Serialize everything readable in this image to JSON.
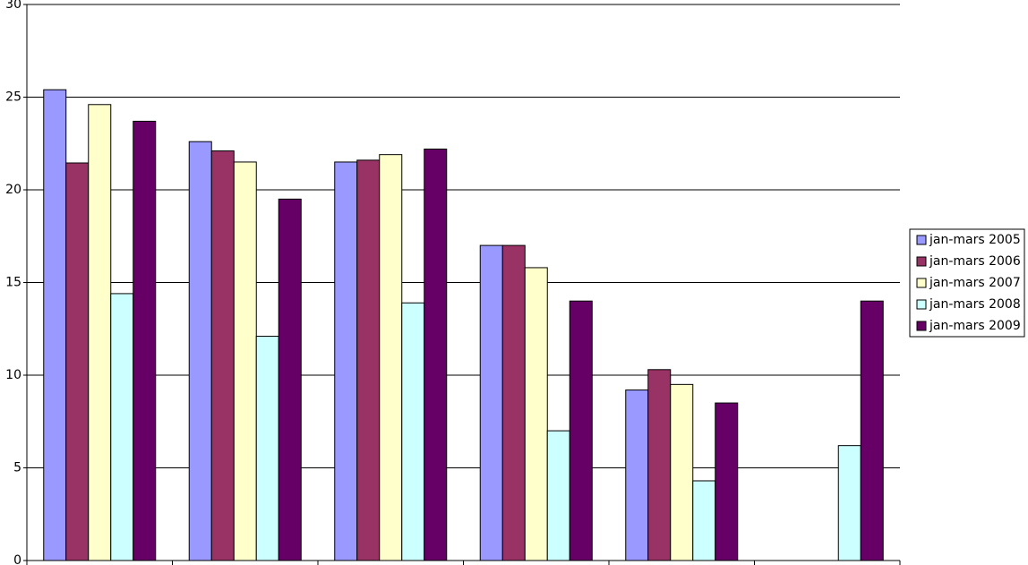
{
  "chart_data": {
    "type": "bar",
    "legend": "right",
    "grid": true,
    "categories": [
      null,
      null,
      null,
      null,
      null,
      null
    ],
    "series": [
      {
        "name": "jan-mars 2005",
        "color": "#9999ff",
        "values": [
          25.4,
          22.6,
          21.5,
          17.0,
          9.2,
          null
        ]
      },
      {
        "name": "jan-mars 2006",
        "color": "#993366",
        "values": [
          21.45,
          22.1,
          21.6,
          17.0,
          10.3,
          null
        ]
      },
      {
        "name": "jan-mars 2007",
        "color": "#ffffcc",
        "values": [
          24.6,
          21.5,
          21.9,
          15.8,
          9.5,
          null
        ]
      },
      {
        "name": "jan-mars 2008",
        "color": "#ccffff",
        "values": [
          14.4,
          12.1,
          13.9,
          7.0,
          4.3,
          6.2
        ]
      },
      {
        "name": "jan-mars 2009",
        "color": "#660066",
        "values": [
          23.7,
          19.5,
          22.2,
          14.0,
          8.5,
          14.0
        ]
      }
    ],
    "ylim": [
      0,
      30
    ],
    "yticks": [
      0,
      5,
      10,
      15,
      20,
      25,
      30
    ]
  }
}
